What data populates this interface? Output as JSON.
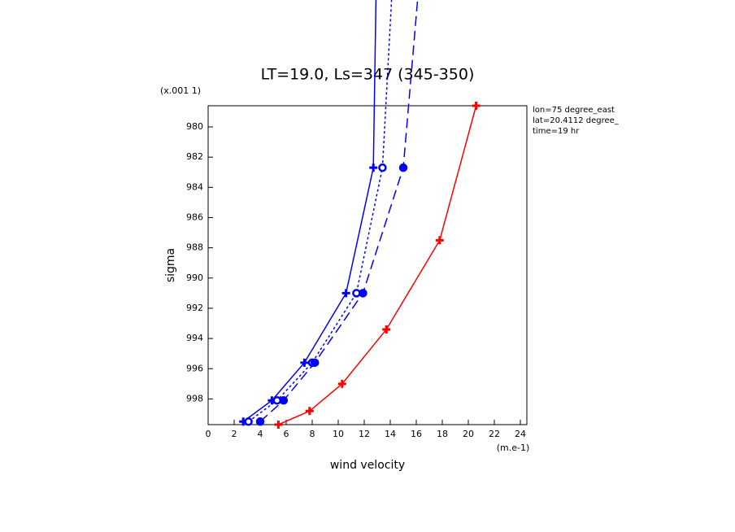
{
  "chart_data": {
    "type": "line",
    "title": "LT=19.0, Ls=347 (345-350)",
    "x_label": "wind velocity",
    "y_label": "sigma",
    "x_units": "(m.e-1)",
    "y_units": "(x.001 1)",
    "annotations": [
      "lon=75 degree_east",
      "lat=20.4112 degree_",
      "time=19 hr"
    ],
    "xlim": [
      0,
      24.5
    ],
    "ylim": [
      978.6,
      999.7
    ],
    "y_inverted": true,
    "xticks": [
      0,
      2,
      4,
      6,
      8,
      10,
      12,
      14,
      16,
      18,
      20,
      22,
      24
    ],
    "yticks": [
      980,
      982,
      984,
      986,
      988,
      990,
      992,
      994,
      996,
      998
    ],
    "series": [
      {
        "color": "#0000ff",
        "dash": "solid",
        "marker": "plus",
        "values": [
          2.7,
          4.9,
          7.4,
          10.6,
          12.7,
          12.9
        ],
        "sigma": [
          999.5,
          998.1,
          995.6,
          991.0,
          982.7,
          971.6
        ]
      },
      {
        "color": "#0000ff",
        "dash": "dotted",
        "marker": "circle",
        "values": [
          3.1,
          5.3,
          8.0,
          11.4,
          13.4,
          14.1
        ],
        "sigma": [
          999.5,
          998.1,
          995.6,
          991.0,
          982.7,
          971.6
        ]
      },
      {
        "color": "#0000ff",
        "dash": "dashed",
        "marker": "dot",
        "values": [
          4.0,
          5.8,
          8.2,
          11.9,
          15.0,
          16.1
        ],
        "sigma": [
          999.5,
          998.1,
          995.6,
          991.0,
          982.7,
          971.6
        ]
      },
      {
        "color": "#ff0000",
        "dash": "solid",
        "marker": "plus",
        "values": [
          5.4,
          7.8,
          10.3,
          13.7,
          17.8,
          20.6
        ],
        "sigma": [
          999.7,
          998.8,
          997.0,
          993.4,
          987.5,
          978.6
        ]
      }
    ]
  }
}
